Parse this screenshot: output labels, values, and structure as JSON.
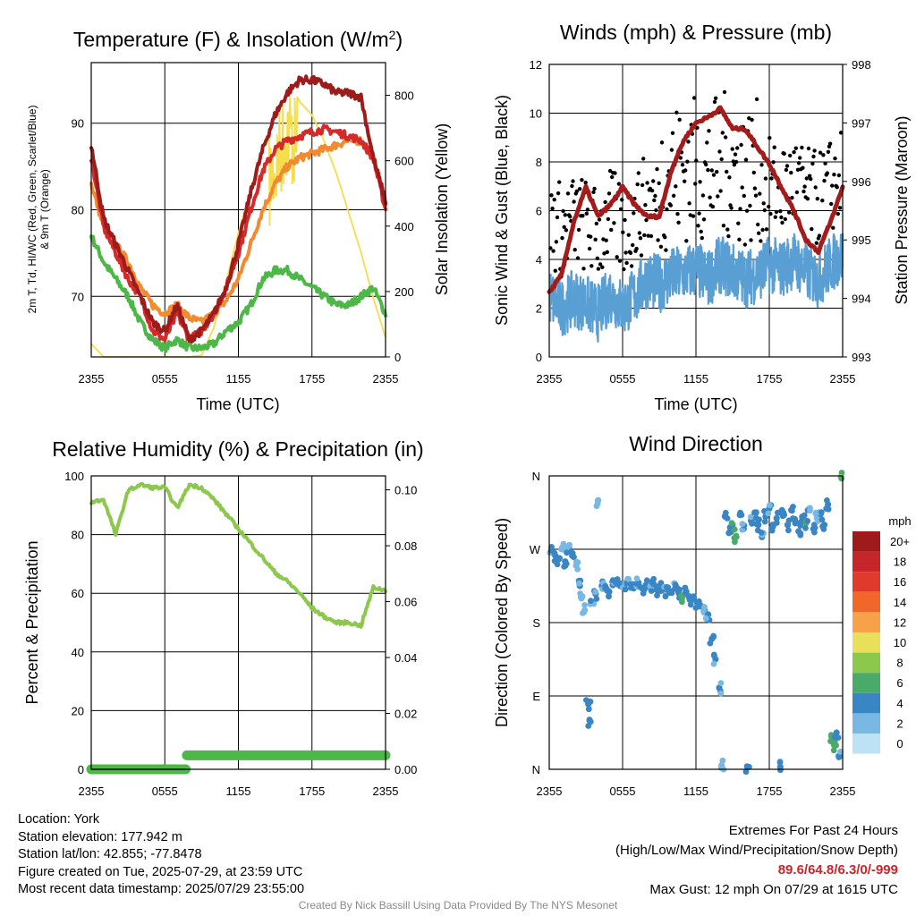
{
  "colors": {
    "temperature": "#9e1b1b",
    "dewpoint": "#4db848",
    "heat_index": "#d42a2a",
    "temp_9m": "#f28a30",
    "insolation": "#f5dd4b",
    "wind": "#5a9fd4",
    "gust": "#000000",
    "pressure": "#a31b1b",
    "humidity": "#8cc84b",
    "precip": "#4db848",
    "extremes_highlight": "#c8262c",
    "credit_text": "#8a8a8a"
  },
  "charts": {
    "temperature": {
      "title": "Temperature (F) & Insolation (W/m²)",
      "ylabel_left_line1": "2m T, Td, HI/WC (Red, Green, Scarlet/Blue)",
      "ylabel_left_line2": "& 9m T (Orange)",
      "ylabel_right": "Solar Insolation (Yellow)",
      "xlabel": "Time (UTC)",
      "xticks": [
        "2355",
        "0555",
        "1155",
        "1755",
        "2355"
      ],
      "yticks_left": [
        "70",
        "80",
        "90"
      ],
      "yticks_right": [
        "0",
        "200",
        "400",
        "600",
        "800"
      ]
    },
    "winds": {
      "title": "Winds (mph) & Pressure (mb)",
      "ylabel_left": "Sonic Wind & Gust (Blue, Black)",
      "ylabel_right": "Station Pressure (Maroon)",
      "xlabel": "Time (UTC)",
      "xticks": [
        "2355",
        "0555",
        "1155",
        "1755",
        "2355"
      ],
      "yticks_left": [
        "0",
        "2",
        "4",
        "6",
        "8",
        "10",
        "12"
      ],
      "yticks_right": [
        "993",
        "994",
        "995",
        "996",
        "997",
        "998"
      ]
    },
    "humidity": {
      "title": "Relative Humidity (%) & Precipitation (in)",
      "ylabel_left": "Percent & Precipitation",
      "xticks": [
        "2355",
        "0555",
        "1155",
        "1755",
        "2355"
      ],
      "yticks_left": [
        "0",
        "20",
        "40",
        "60",
        "80",
        "100"
      ],
      "yticks_right": [
        "0.00",
        "0.02",
        "0.04",
        "0.06",
        "0.08",
        "0.10"
      ]
    },
    "direction": {
      "title": "Wind Direction",
      "ylabel_left": "Direction (Colored By Speed)",
      "xticks": [
        "2355",
        "0555",
        "1155",
        "1755",
        "2355"
      ],
      "yticks_left": [
        "N",
        "E",
        "S",
        "W",
        "N"
      ],
      "legend_title": "mph",
      "legend_labels": [
        "20+",
        "18",
        "16",
        "14",
        "12",
        "10",
        "8",
        "6",
        "4",
        "2",
        "0"
      ],
      "legend_colors": [
        "#9e1b1b",
        "#c4262a",
        "#df3a2c",
        "#f0662b",
        "#f7a24b",
        "#e8e05a",
        "#8cc84b",
        "#4aaa6a",
        "#3a86c4",
        "#7ab8e4",
        "#bde2f6"
      ]
    }
  },
  "chart_data": [
    {
      "type": "line",
      "title": "Temperature (F) & Insolation (W/m²)",
      "x_hours": [
        0,
        1,
        2,
        3,
        4,
        5,
        6,
        7,
        8,
        9,
        10,
        11,
        12,
        13,
        14,
        15,
        16,
        17,
        18,
        19,
        20,
        21,
        22,
        23,
        24
      ],
      "ylim": [
        63,
        97
      ],
      "series": [
        {
          "axis": "left",
          "values": [
            87.5,
            79,
            76,
            73,
            70,
            67,
            66,
            69,
            65,
            66,
            68,
            71,
            76,
            82,
            87,
            91,
            93.5,
            95,
            95,
            94.5,
            93.5,
            93.5,
            93,
            86,
            81
          ]
        },
        {
          "axis": "left",
          "values": [
            77,
            74,
            72,
            70,
            67,
            65,
            64,
            65,
            64,
            64,
            64.5,
            66,
            67,
            69,
            72,
            73,
            73,
            72,
            71,
            70,
            69,
            69,
            70,
            71,
            68
          ]
        },
        {
          "axis": "left",
          "values": [
            86,
            78,
            75,
            72,
            70,
            66,
            65,
            68,
            65,
            66,
            68,
            71,
            75,
            80,
            84.5,
            87,
            88,
            88.5,
            89,
            89.3,
            89,
            88.5,
            88,
            86,
            80
          ]
        },
        {
          "axis": "left",
          "values": [
            83,
            78,
            76,
            74,
            71,
            69,
            68,
            69,
            67.5,
            67,
            68,
            69.5,
            72,
            76,
            80,
            83,
            85,
            86,
            86.5,
            87,
            87.5,
            88,
            88,
            86,
            81
          ]
        }
      ],
      "right_ylim": [
        0,
        900
      ],
      "insolation": [
        40,
        0,
        0,
        0,
        0,
        0,
        0,
        0,
        0,
        5,
        90,
        230,
        380,
        510,
        640,
        740,
        860,
        780,
        740,
        660,
        560,
        440,
        320,
        180,
        60
      ]
    },
    {
      "type": "line",
      "title": "Winds (mph) & Pressure (mb)",
      "x_hours": [
        0,
        1,
        2,
        3,
        4,
        5,
        6,
        7,
        8,
        9,
        10,
        11,
        12,
        13,
        14,
        15,
        16,
        17,
        18,
        19,
        20,
        21,
        22,
        23,
        24
      ],
      "ylim": [
        0,
        12
      ],
      "series": [
        {
          "axis": "left",
          "values": [
            2.5,
            2.0,
            2.4,
            2.2,
            1.8,
            2.6,
            2.0,
            2.5,
            3.2,
            3.0,
            3.3,
            3.4,
            3.6,
            3.2,
            3.8,
            3.5,
            3.2,
            3.4,
            3.8,
            3.6,
            4.0,
            3.5,
            3.2,
            3.8,
            4.2
          ]
        }
      ],
      "right_ylim": [
        993,
        998
      ],
      "pressure": [
        994.1,
        994.4,
        995.3,
        995.9,
        995.4,
        995.6,
        995.9,
        995.6,
        995.4,
        995.4,
        996.2,
        996.7,
        997.0,
        997.1,
        997.25,
        996.9,
        996.9,
        996.6,
        996.3,
        995.9,
        995.5,
        995.0,
        994.8,
        995.3,
        995.9
      ]
    },
    {
      "type": "line",
      "title": "Relative Humidity (%) & Precipitation (in)",
      "x_hours": [
        0,
        1,
        2,
        3,
        4,
        5,
        6,
        7,
        8,
        9,
        10,
        11,
        12,
        13,
        14,
        15,
        16,
        17,
        18,
        19,
        20,
        21,
        22,
        23,
        24
      ],
      "ylim": [
        0,
        100
      ],
      "series": [
        {
          "axis": "left",
          "values": [
            91,
            92,
            80,
            95,
            97,
            96,
            96,
            89,
            97,
            96,
            92,
            87,
            82,
            77,
            72,
            67,
            64,
            60,
            55,
            52,
            50,
            50,
            49,
            62,
            61
          ]
        }
      ],
      "right_ylim": [
        0,
        0.105
      ],
      "precipitation": [
        0.0,
        0.0,
        0.0,
        0.0,
        0.0,
        0.0,
        0.0,
        0.0,
        0.005,
        0.005,
        0.005,
        0.005,
        0.005,
        0.005,
        0.005,
        0.005,
        0.005,
        0.005,
        0.005,
        0.005,
        0.005,
        0.005,
        0.005,
        0.005,
        0.005
      ]
    },
    {
      "type": "scatter",
      "title": "Wind Direction",
      "ylim": [
        0,
        360
      ],
      "points": [
        {
          "x": 0.2,
          "y": 266,
          "speed": 3
        },
        {
          "x": 0.5,
          "y": 262,
          "speed": 3
        },
        {
          "x": 0.8,
          "y": 258,
          "speed": 4
        },
        {
          "x": 1.0,
          "y": 270,
          "speed": 2
        },
        {
          "x": 1.3,
          "y": 255,
          "speed": 3
        },
        {
          "x": 1.6,
          "y": 272,
          "speed": 3
        },
        {
          "x": 1.9,
          "y": 265,
          "speed": 4
        },
        {
          "x": 2.2,
          "y": 250,
          "speed": 2
        },
        {
          "x": 2.5,
          "y": 225,
          "speed": 3
        },
        {
          "x": 2.7,
          "y": 212,
          "speed": 2
        },
        {
          "x": 2.9,
          "y": 195,
          "speed": 2
        },
        {
          "x": 3.2,
          "y": 80,
          "speed": 3
        },
        {
          "x": 3.3,
          "y": 60,
          "speed": 4
        },
        {
          "x": 3.5,
          "y": 205,
          "speed": 3
        },
        {
          "x": 3.8,
          "y": 215,
          "speed": 3
        },
        {
          "x": 4.0,
          "y": 330,
          "speed": 2
        },
        {
          "x": 4.3,
          "y": 225,
          "speed": 3
        },
        {
          "x": 4.6,
          "y": 222,
          "speed": 4
        },
        {
          "x": 4.9,
          "y": 218,
          "speed": 4
        },
        {
          "x": 5.2,
          "y": 226,
          "speed": 3
        },
        {
          "x": 5.5,
          "y": 232,
          "speed": 4
        },
        {
          "x": 5.8,
          "y": 228,
          "speed": 4
        },
        {
          "x": 6.1,
          "y": 224,
          "speed": 3
        },
        {
          "x": 6.4,
          "y": 230,
          "speed": 3
        },
        {
          "x": 6.7,
          "y": 227,
          "speed": 4
        },
        {
          "x": 7.0,
          "y": 225,
          "speed": 4
        },
        {
          "x": 7.3,
          "y": 229,
          "speed": 3
        },
        {
          "x": 7.6,
          "y": 222,
          "speed": 4
        },
        {
          "x": 7.9,
          "y": 226,
          "speed": 4
        },
        {
          "x": 8.2,
          "y": 223,
          "speed": 3
        },
        {
          "x": 8.5,
          "y": 228,
          "speed": 4
        },
        {
          "x": 8.8,
          "y": 220,
          "speed": 4
        },
        {
          "x": 9.1,
          "y": 225,
          "speed": 4
        },
        {
          "x": 9.4,
          "y": 219,
          "speed": 3
        },
        {
          "x": 9.7,
          "y": 223,
          "speed": 4
        },
        {
          "x": 10.0,
          "y": 218,
          "speed": 4
        },
        {
          "x": 10.3,
          "y": 222,
          "speed": 3
        },
        {
          "x": 10.6,
          "y": 216,
          "speed": 4
        },
        {
          "x": 10.9,
          "y": 212,
          "speed": 6
        },
        {
          "x": 11.2,
          "y": 218,
          "speed": 4
        },
        {
          "x": 11.5,
          "y": 208,
          "speed": 4
        },
        {
          "x": 11.8,
          "y": 212,
          "speed": 4
        },
        {
          "x": 12.1,
          "y": 205,
          "speed": 4
        },
        {
          "x": 12.4,
          "y": 200,
          "speed": 4
        },
        {
          "x": 12.7,
          "y": 195,
          "speed": 3
        },
        {
          "x": 13.0,
          "y": 190,
          "speed": 3
        },
        {
          "x": 13.3,
          "y": 160,
          "speed": 4
        },
        {
          "x": 13.6,
          "y": 135,
          "speed": 3
        },
        {
          "x": 13.9,
          "y": 100,
          "speed": 3
        },
        {
          "x": 14.1,
          "y": 5,
          "speed": 2
        },
        {
          "x": 14.4,
          "y": 310,
          "speed": 4
        },
        {
          "x": 14.7,
          "y": 290,
          "speed": 4
        },
        {
          "x": 15.0,
          "y": 300,
          "speed": 5
        },
        {
          "x": 15.3,
          "y": 285,
          "speed": 6
        },
        {
          "x": 15.6,
          "y": 312,
          "speed": 4
        },
        {
          "x": 15.9,
          "y": 295,
          "speed": 3
        },
        {
          "x": 16.2,
          "y": 3,
          "speed": 4
        },
        {
          "x": 16.5,
          "y": 305,
          "speed": 3
        },
        {
          "x": 16.8,
          "y": 315,
          "speed": 4
        },
        {
          "x": 17.1,
          "y": 300,
          "speed": 4
        },
        {
          "x": 17.4,
          "y": 285,
          "speed": 3
        },
        {
          "x": 17.7,
          "y": 310,
          "speed": 4
        },
        {
          "x": 18.0,
          "y": 320,
          "speed": 3
        },
        {
          "x": 18.3,
          "y": 298,
          "speed": 4
        },
        {
          "x": 18.6,
          "y": 308,
          "speed": 4
        },
        {
          "x": 18.9,
          "y": 3,
          "speed": 3
        },
        {
          "x": 19.2,
          "y": 312,
          "speed": 4
        },
        {
          "x": 19.5,
          "y": 300,
          "speed": 4
        },
        {
          "x": 19.8,
          "y": 318,
          "speed": 3
        },
        {
          "x": 20.1,
          "y": 305,
          "speed": 4
        },
        {
          "x": 20.4,
          "y": 292,
          "speed": 3
        },
        {
          "x": 20.7,
          "y": 310,
          "speed": 4
        },
        {
          "x": 21.0,
          "y": 302,
          "speed": 5
        },
        {
          "x": 21.3,
          "y": 320,
          "speed": 3
        },
        {
          "x": 21.6,
          "y": 295,
          "speed": 4
        },
        {
          "x": 21.9,
          "y": 308,
          "speed": 2
        },
        {
          "x": 22.2,
          "y": 313,
          "speed": 3
        },
        {
          "x": 22.5,
          "y": 300,
          "speed": 4
        },
        {
          "x": 22.8,
          "y": 325,
          "speed": 3
        },
        {
          "x": 23.1,
          "y": 40,
          "speed": 6
        },
        {
          "x": 23.3,
          "y": 30,
          "speed": 6
        },
        {
          "x": 23.5,
          "y": 45,
          "speed": 4
        },
        {
          "x": 23.7,
          "y": 15,
          "speed": 3
        },
        {
          "x": 23.9,
          "y": 358,
          "speed": 7
        }
      ]
    }
  ],
  "info": {
    "location": "Location: York",
    "elevation": "Station elevation: 177.942 m",
    "latlon": "Station lat/lon: 42.855; -77.8478",
    "created": "Figure created on Tue, 2025-07-29, at 23:59 UTC",
    "recent": "Most recent data timestamp: 2025/07/29 23:55:00"
  },
  "extremes": {
    "heading": "Extremes For Past 24 Hours",
    "subheading": "(High/Low/Max Wind/Precipitation/Snow Depth)",
    "values": "89.6/64.8/6.3/0/-999",
    "gust": "Max Gust: 12 mph On 07/29 at 1615 UTC"
  },
  "credit": "Created By Nick Bassill Using Data Provided By The NYS Mesonet"
}
